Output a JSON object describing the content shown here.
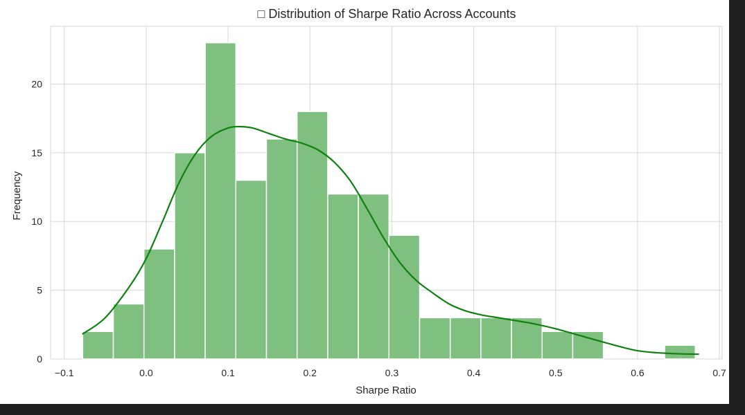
{
  "chart_data": {
    "type": "bar",
    "subtype": "histogram",
    "title": "□ Distribution of Sharpe Ratio Across Accounts",
    "xlabel": "Sharpe Ratio",
    "ylabel": "Frequency",
    "xlim": [
      -0.1167,
      0.7033
    ],
    "ylim": [
      0,
      24.2
    ],
    "x_ticks": [
      "−0.1",
      "0.0",
      "0.1",
      "0.2",
      "0.3",
      "0.4",
      "0.5",
      "0.6",
      "0.7"
    ],
    "x_tick_values": [
      -0.1,
      0.0,
      0.1,
      0.2,
      0.3,
      0.4,
      0.5,
      0.6,
      0.7
    ],
    "y_ticks": [
      "0",
      "5",
      "10",
      "15",
      "20"
    ],
    "y_tick_values": [
      0,
      5,
      10,
      15,
      20
    ],
    "grid": true,
    "bin_edges": [
      -0.0775,
      -0.0401,
      -0.0027,
      0.0347,
      0.0721,
      0.1095,
      0.1469,
      0.1843,
      0.2217,
      0.2591,
      0.2965,
      0.3339,
      0.3713,
      0.4087,
      0.4461,
      0.4835,
      0.5209,
      0.5583,
      0.5957,
      0.6331,
      0.6705
    ],
    "values": [
      2,
      4,
      8,
      15,
      23,
      13,
      16,
      18,
      12,
      12,
      9,
      3,
      3,
      3,
      3,
      2,
      2,
      0,
      0,
      1
    ],
    "kde": {
      "x": [
        -0.078,
        -0.05,
        -0.02,
        0.0,
        0.02,
        0.04,
        0.06,
        0.08,
        0.1,
        0.115,
        0.13,
        0.15,
        0.17,
        0.19,
        0.21,
        0.23,
        0.25,
        0.27,
        0.29,
        0.31,
        0.33,
        0.35,
        0.37,
        0.39,
        0.41,
        0.43,
        0.45,
        0.47,
        0.5,
        0.53,
        0.56,
        0.6,
        0.64,
        0.675
      ],
      "y": [
        1.8,
        3.0,
        5.3,
        7.3,
        10.0,
        12.8,
        14.9,
        16.2,
        16.8,
        16.9,
        16.8,
        16.4,
        16.0,
        15.7,
        15.2,
        14.3,
        12.9,
        10.9,
        8.8,
        7.0,
        5.7,
        4.8,
        4.0,
        3.5,
        3.2,
        3.0,
        2.8,
        2.6,
        2.2,
        1.7,
        1.2,
        0.6,
        0.4,
        0.35
      ]
    },
    "bar_color": "#7fbf7f",
    "bar_edge_color": "#ffffff",
    "kde_color": "#108010"
  }
}
